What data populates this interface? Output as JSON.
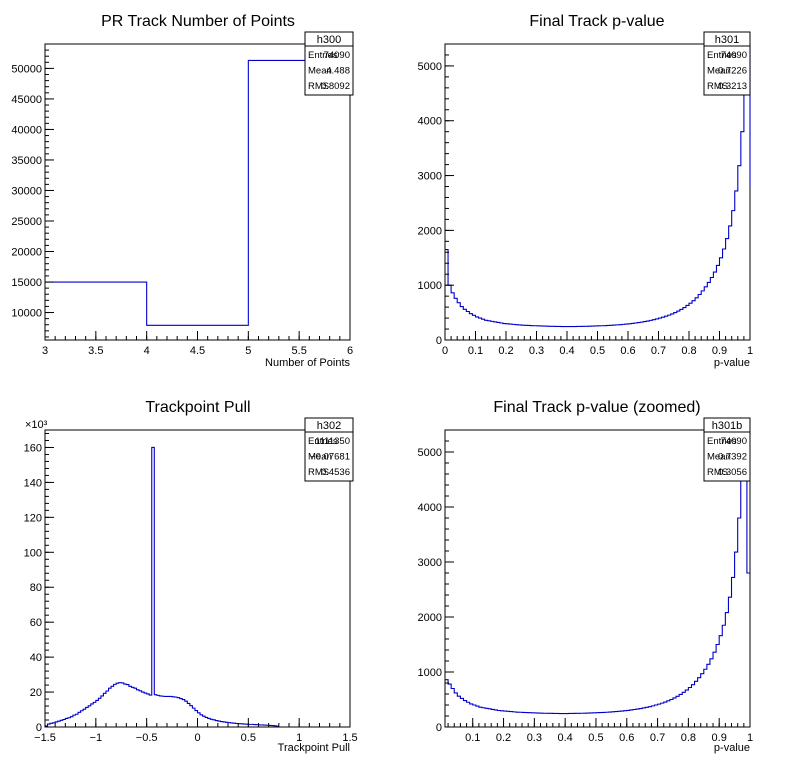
{
  "chart_data": [
    {
      "type": "histogram",
      "title": "PR Track Number of Points",
      "xlabel": "Number of Points",
      "ylabel": "",
      "xlim": [
        3,
        6
      ],
      "ylim": [
        5500,
        54000
      ],
      "xticks": [
        3,
        3.5,
        4,
        4.5,
        5,
        5.5,
        6
      ],
      "xtick_labels": [
        "3",
        "3.5",
        "4",
        "4.5",
        "5",
        "5.5",
        "6"
      ],
      "yticks": [
        10000,
        15000,
        20000,
        25000,
        30000,
        35000,
        40000,
        45000,
        50000
      ],
      "ytick_labels": [
        "10000",
        "15000",
        "20000",
        "25000",
        "30000",
        "35000",
        "40000",
        "45000",
        "50000"
      ],
      "y_exponent_label": "",
      "bin_edges": [
        3,
        4,
        5,
        6
      ],
      "values": [
        15000,
        7900,
        51300
      ],
      "stats": {
        "name": "h300",
        "rows": [
          {
            "label": "Entries",
            "value": "74090"
          },
          {
            "label": "Mean",
            "value": "4.488"
          },
          {
            "label": "RMS",
            "value": "0.8092"
          }
        ]
      }
    },
    {
      "type": "histogram",
      "title": "Final Track p-value",
      "xlabel": "p-value",
      "ylabel": "",
      "xlim": [
        0,
        1
      ],
      "ylim": [
        0,
        5400
      ],
      "xticks": [
        0,
        0.1,
        0.2,
        0.3,
        0.4,
        0.5,
        0.6,
        0.7,
        0.8,
        0.9,
        1
      ],
      "xtick_labels": [
        "0",
        "0.1",
        "0.2",
        "0.3",
        "0.4",
        "0.5",
        "0.6",
        "0.7",
        "0.8",
        "0.9",
        "1"
      ],
      "yticks": [
        0,
        1000,
        2000,
        3000,
        4000,
        5000
      ],
      "ytick_labels": [
        "0",
        "1000",
        "2000",
        "3000",
        "4000",
        "5000"
      ],
      "y_exponent_label": "",
      "bin_start": 0,
      "bin_width": 0.01,
      "values": [
        1650,
        1000,
        860,
        760,
        680,
        610,
        560,
        520,
        480,
        450,
        420,
        400,
        380,
        360,
        350,
        340,
        330,
        320,
        310,
        300,
        295,
        290,
        285,
        280,
        275,
        270,
        268,
        265,
        262,
        260,
        258,
        256,
        254,
        252,
        250,
        249,
        248,
        247,
        246,
        245,
        245,
        245,
        246,
        247,
        248,
        249,
        250,
        252,
        254,
        256,
        258,
        260,
        262,
        265,
        268,
        272,
        276,
        280,
        285,
        290,
        296,
        302,
        310,
        318,
        326,
        336,
        346,
        358,
        370,
        384,
        400,
        416,
        434,
        454,
        476,
        500,
        528,
        558,
        592,
        630,
        672,
        718,
        770,
        830,
        896,
        970,
        1050,
        1140,
        1240,
        1360,
        1500,
        1660,
        1850,
        2080,
        2360,
        2720,
        3180,
        3800,
        4900,
        5600,
        2800
      ],
      "stats": {
        "name": "h301",
        "rows": [
          {
            "label": "Entries",
            "value": "74090"
          },
          {
            "label": "Mean",
            "value": "0.7226"
          },
          {
            "label": "RMS",
            "value": "0.3213"
          }
        ]
      }
    },
    {
      "type": "histogram",
      "title": "Trackpoint Pull",
      "xlabel": "Trackpoint Pull",
      "ylabel": "",
      "xlim": [
        -1.5,
        1.5
      ],
      "ylim": [
        0,
        170
      ],
      "xticks": [
        -1.5,
        -1,
        -0.5,
        0,
        0.5,
        1,
        1.5
      ],
      "xtick_labels": [
        "−1.5",
        "−1",
        "−0.5",
        "0",
        "0.5",
        "1",
        "1.5"
      ],
      "yticks": [
        0,
        20,
        40,
        60,
        80,
        100,
        120,
        140,
        160
      ],
      "ytick_labels": [
        "0",
        "20",
        "40",
        "60",
        "80",
        "100",
        "120",
        "140",
        "160"
      ],
      "y_exponent_label": "×10³",
      "bin_start": -1.5,
      "bin_width": 0.025,
      "values": [
        0.6,
        1.7,
        2.1,
        2.4,
        2.9,
        3.3,
        3.8,
        4.3,
        4.9,
        5.3,
        5.9,
        6.8,
        7.3,
        8.4,
        9.3,
        10.2,
        11.2,
        12.1,
        13.2,
        14.1,
        15.2,
        16.4,
        17.8,
        19.3,
        20.6,
        22.2,
        23.3,
        24.4,
        25.1,
        25.4,
        25.2,
        24.6,
        24.3,
        23.3,
        22.7,
        22.2,
        21.3,
        20.7,
        20.0,
        19.4,
        18.9,
        18.3,
        160.0,
        18.5,
        18.1,
        17.8,
        17.6,
        17.5,
        17.5,
        17.5,
        17.3,
        17.1,
        16.8,
        16.3,
        15.7,
        14.8,
        13.5,
        12.2,
        10.8,
        9.4,
        8.1,
        7.0,
        6.2,
        5.5,
        4.9,
        4.4,
        4.1,
        3.7,
        3.4,
        3.1,
        2.9,
        2.7,
        2.5,
        2.3,
        2.2,
        2.0,
        1.9,
        1.8,
        1.7,
        1.6,
        1.5,
        1.5,
        1.4,
        1.3,
        1.2,
        1.2,
        1.1,
        1.0,
        0.9,
        0.8,
        0.7,
        0.5
      ],
      "stats": {
        "name": "h302",
        "rows": [
          {
            "label": "Entries",
            "value": "1111350"
          },
          {
            "label": "Mean",
            "value": "−0.07681"
          },
          {
            "label": "RMS",
            "value": "0.4536"
          }
        ]
      }
    },
    {
      "type": "histogram",
      "title": "Final Track p-value (zoomed)",
      "xlabel": "p-value",
      "ylabel": "",
      "xlim": [
        0.01,
        1
      ],
      "ylim": [
        0,
        5400
      ],
      "xticks": [
        0.1,
        0.2,
        0.3,
        0.4,
        0.5,
        0.6,
        0.7,
        0.8,
        0.9,
        1
      ],
      "xtick_labels": [
        "0.1",
        "0.2",
        "0.3",
        "0.4",
        "0.5",
        "0.6",
        "0.7",
        "0.8",
        "0.9",
        "1"
      ],
      "yticks": [
        0,
        1000,
        2000,
        3000,
        4000,
        5000
      ],
      "ytick_labels": [
        "0",
        "1000",
        "2000",
        "3000",
        "4000",
        "5000"
      ],
      "y_exponent_label": "",
      "bin_start": 0.01,
      "bin_width": 0.01,
      "values": [
        860,
        780,
        700,
        620,
        560,
        520,
        480,
        450,
        420,
        400,
        380,
        360,
        350,
        340,
        330,
        320,
        310,
        300,
        295,
        290,
        285,
        280,
        275,
        270,
        268,
        265,
        262,
        260,
        258,
        256,
        254,
        252,
        250,
        249,
        248,
        247,
        246,
        245,
        245,
        245,
        246,
        247,
        248,
        249,
        250,
        252,
        254,
        256,
        258,
        260,
        262,
        265,
        268,
        272,
        276,
        280,
        285,
        290,
        296,
        302,
        310,
        318,
        326,
        336,
        346,
        358,
        370,
        384,
        400,
        416,
        434,
        454,
        476,
        500,
        528,
        558,
        592,
        630,
        672,
        718,
        770,
        830,
        896,
        970,
        1050,
        1140,
        1240,
        1360,
        1500,
        1660,
        1850,
        2080,
        2360,
        2720,
        3180,
        3800,
        4900,
        5600,
        2800
      ],
      "stats": {
        "name": "h301b",
        "rows": [
          {
            "label": "Entries",
            "value": "74090"
          },
          {
            "label": "Mean",
            "value": "0.7392"
          },
          {
            "label": "RMS",
            "value": "0.3056"
          }
        ]
      }
    }
  ]
}
